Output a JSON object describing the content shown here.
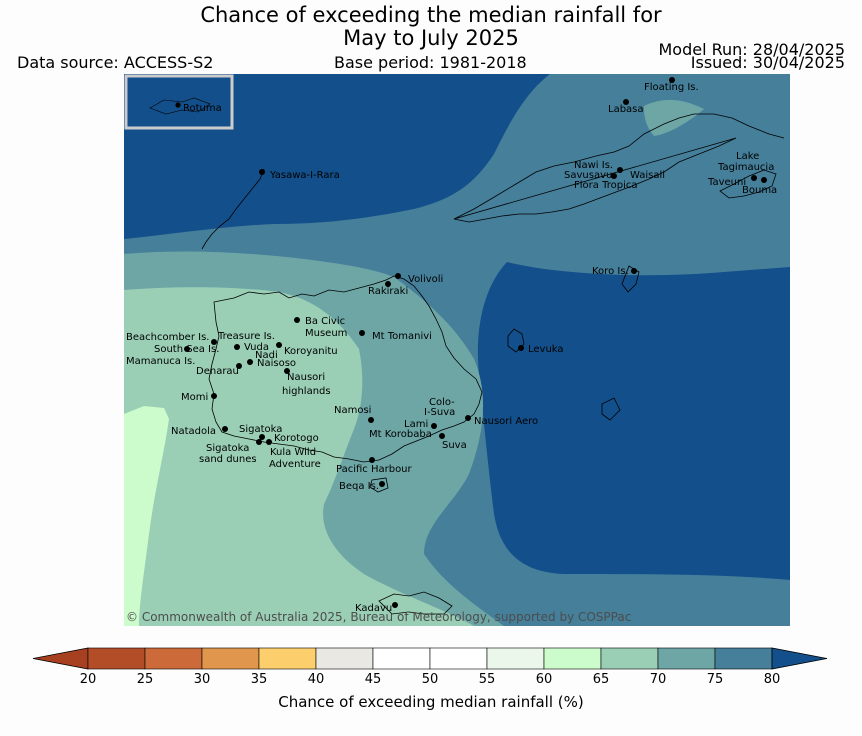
{
  "title_line1": "Chance of exceeding the median rainfall for",
  "title_line2": "May to July 2025",
  "data_source": "Data source: ACCESS-S2",
  "base_period": "Base period: 1981-2018",
  "model_run": "Model Run: 28/04/2025",
  "issued": "Issued: 30/04/2025",
  "copyright": "© Commonwealth of Australia 2025, Bureau of Meteorology, supported by COSPPac",
  "inset_label": "Rotuma",
  "places": [
    "Floating Is.",
    "Labasa",
    "Nawi Is.",
    "Savusavu",
    "Waisali",
    "Flora Tropica",
    "Lake",
    "Tagimaucia",
    "Taveuni",
    "Bouma",
    "Yasawa-I-Rara",
    "Koro Is.",
    "Volivoli",
    "Rakiraki",
    "Ba Civic",
    "Museum",
    "Mt Tomanivi",
    "Beachcomber Is.",
    "Treasure Is.",
    "South Sea Is.",
    "Vuda",
    "Koroyanitu",
    "Nadi",
    "Mamanuca Is.",
    "Naisoso",
    "Denarau",
    "Nausori",
    "highlands",
    "Levuka",
    "Momi",
    "Colo-",
    "I-Suva",
    "Namosi",
    "Lami",
    "Nausori Aero",
    "Mt Korobaba",
    "Suva",
    "Natadola",
    "Sigatoka",
    "Korotogo",
    "Sigatoka",
    "sand dunes",
    "Kula Wild",
    "Adventure",
    "Pacific Harbour",
    "Beqa Is.",
    "Kadavu"
  ],
  "colorbar": {
    "ticks": [
      "20",
      "25",
      "30",
      "35",
      "40",
      "45",
      "50",
      "55",
      "60",
      "65",
      "70",
      "75",
      "80"
    ],
    "label": "Chance of exceeding median rainfall (%)",
    "colors": [
      "#a64020",
      "#b34d28",
      "#cc6a3a",
      "#e0964c",
      "#fdcf6c",
      "#eae8e3",
      "#ffffff",
      "#ffffff",
      "#eaf7ea",
      "#ccfbcc",
      "#9acfb6",
      "#6ea6a6",
      "#457f9a",
      "#134f8a"
    ]
  },
  "zone_colors": {
    "z60": "#ccfbcc",
    "z65": "#9acfb6",
    "z70": "#6ea6a6",
    "z75": "#457f9a",
    "z80": "#134f8a"
  }
}
